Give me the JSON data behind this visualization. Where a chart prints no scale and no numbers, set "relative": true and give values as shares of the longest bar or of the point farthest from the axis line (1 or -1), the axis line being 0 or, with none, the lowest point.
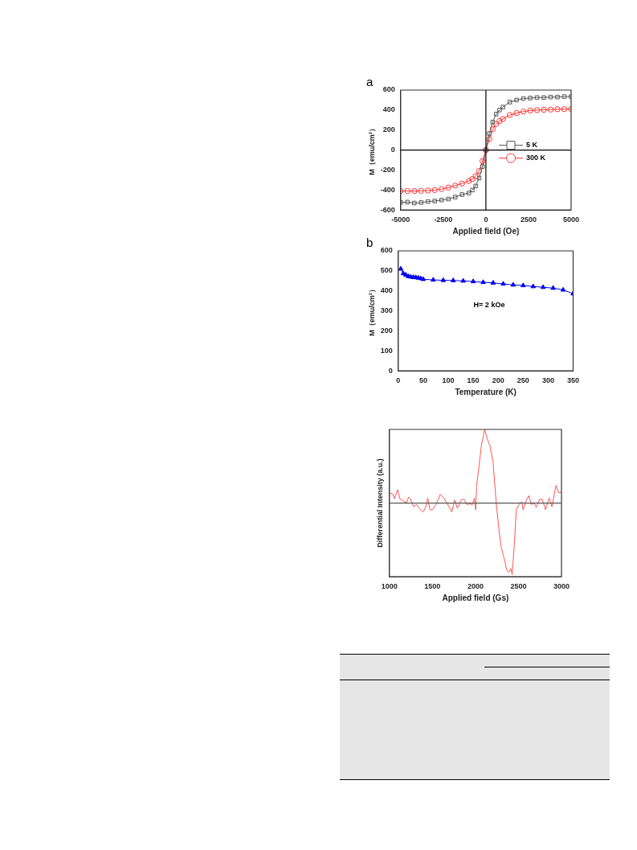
{
  "chart_data": [
    {
      "type": "line",
      "title": "a",
      "xlabel": "Applied field (Oe)",
      "ylabel": "M（emu/cm³）",
      "xlim": [
        -5000,
        5000
      ],
      "xticks": [
        -5000,
        -2500,
        0,
        2500,
        5000
      ],
      "ylim": [
        -600,
        600
      ],
      "yticks": [
        -600,
        -400,
        -200,
        0,
        200,
        400,
        600
      ],
      "legend": "right",
      "ref_lines": [
        {
          "axis": "x",
          "value": 0,
          "color": "#000000"
        },
        {
          "axis": "y",
          "value": 0,
          "color": "#000000"
        }
      ],
      "series": [
        {
          "name": "5 K",
          "color": "#555555",
          "marker": "square",
          "x": [
            -5000,
            -4600,
            -4200,
            -3800,
            -3400,
            -3000,
            -2600,
            -2200,
            -1800,
            -1400,
            -1000,
            -800,
            -600,
            -400,
            -200,
            0,
            200,
            400,
            600,
            800,
            1000,
            1400,
            1800,
            2200,
            2600,
            3000,
            3400,
            3800,
            4200,
            4600,
            5000
          ],
          "values": [
            -525,
            -520,
            -530,
            -525,
            -515,
            -510,
            -500,
            -490,
            -470,
            -445,
            -430,
            -400,
            -360,
            -280,
            -165,
            0,
            165,
            280,
            360,
            400,
            430,
            480,
            500,
            515,
            520,
            525,
            525,
            530,
            530,
            535,
            535
          ]
        },
        {
          "name": "300 K",
          "color": "#ff3333",
          "marker": "circle",
          "x": [
            -5000,
            -4600,
            -4200,
            -3800,
            -3400,
            -3000,
            -2600,
            -2200,
            -1800,
            -1400,
            -1000,
            -800,
            -600,
            -400,
            -200,
            0,
            200,
            400,
            600,
            800,
            1000,
            1400,
            1800,
            2200,
            2600,
            3000,
            3400,
            3800,
            4200,
            4600,
            5000
          ],
          "values": [
            -410,
            -410,
            -410,
            -408,
            -405,
            -400,
            -390,
            -375,
            -355,
            -335,
            -310,
            -290,
            -260,
            -210,
            -110,
            0,
            110,
            210,
            260,
            290,
            310,
            350,
            370,
            385,
            395,
            400,
            403,
            405,
            408,
            410,
            410
          ]
        }
      ]
    },
    {
      "type": "line",
      "title": "b",
      "xlabel": "Temperature (K)",
      "ylabel": "M（emu/cm³）",
      "xlim": [
        0,
        350
      ],
      "xticks": [
        0,
        50,
        100,
        150,
        200,
        250,
        300,
        350
      ],
      "ylim": [
        0,
        600
      ],
      "yticks": [
        0,
        100,
        200,
        300,
        400,
        500,
        600
      ],
      "annotations": [
        "H= 2 kOe"
      ],
      "series": [
        {
          "color": "#0000ee",
          "marker": "triangle",
          "x": [
            5,
            10,
            15,
            20,
            25,
            30,
            35,
            40,
            45,
            50,
            70,
            90,
            110,
            130,
            150,
            170,
            190,
            210,
            230,
            250,
            270,
            290,
            310,
            330,
            350
          ],
          "values": [
            510,
            487,
            480,
            473,
            470,
            468,
            467,
            465,
            462,
            458,
            455,
            453,
            452,
            450,
            447,
            443,
            440,
            435,
            430,
            427,
            422,
            418,
            414,
            405,
            386
          ]
        }
      ]
    },
    {
      "type": "line",
      "xlabel": "Applied field (Gs)",
      "ylabel": "Differential Intensity (a.u.)",
      "xlim": [
        1000,
        3000
      ],
      "xticks": [
        1000,
        1500,
        2000,
        2500,
        3000
      ],
      "relative": true,
      "tick_labels": "x",
      "ref_lines": [
        {
          "axis": "y",
          "value": 0,
          "color": "#555555"
        }
      ],
      "series": [
        {
          "color": "#ff5555",
          "marker": "none",
          "x": [
            1000,
            1041,
            1057,
            1096,
            1121,
            1169,
            1201,
            1223,
            1248,
            1280,
            1318,
            1344,
            1392,
            1424,
            1446,
            1471,
            1503,
            1541,
            1592,
            1631,
            1669,
            1726,
            1758,
            1790,
            1838,
            1869,
            1901,
            1933,
            1965,
            1987,
            2003,
            2013,
            2038,
            2070,
            2108,
            2140,
            2166,
            2204,
            2242,
            2274,
            2300,
            2331,
            2363,
            2389,
            2411,
            2427,
            2452,
            2475,
            2507,
            2538,
            2554,
            2586,
            2618,
            2650,
            2682,
            2707,
            2745,
            2777,
            2815,
            2857,
            2889,
            2936,
            2968,
            3000
          ],
          "values": [
            0.14,
            0.12,
            0.06,
            0.18,
            0.06,
            0.02,
            0.01,
            0.08,
            0.05,
            -0.05,
            -0.02,
            -0.07,
            -0.12,
            -0.05,
            0.07,
            -0.09,
            -0.09,
            -0.02,
            0.12,
            0.07,
            0,
            -0.12,
            0.04,
            -0.07,
            0.05,
            0.05,
            -0.02,
            -0.01,
            -0.02,
            0.07,
            -0.09,
            0.23,
            0.47,
            0.79,
            1,
            0.86,
            0.79,
            0.56,
            0,
            -0.37,
            -0.6,
            -0.74,
            -0.91,
            -0.94,
            -0.89,
            -0.97,
            -0.56,
            -0.09,
            -0.02,
            0.02,
            -0.09,
            0.02,
            0.1,
            -0.02,
            0,
            -0.06,
            0.05,
            0.05,
            -0.09,
            0.07,
            -0.05,
            0.24,
            0.14,
            0.15
          ]
        }
      ]
    }
  ]
}
